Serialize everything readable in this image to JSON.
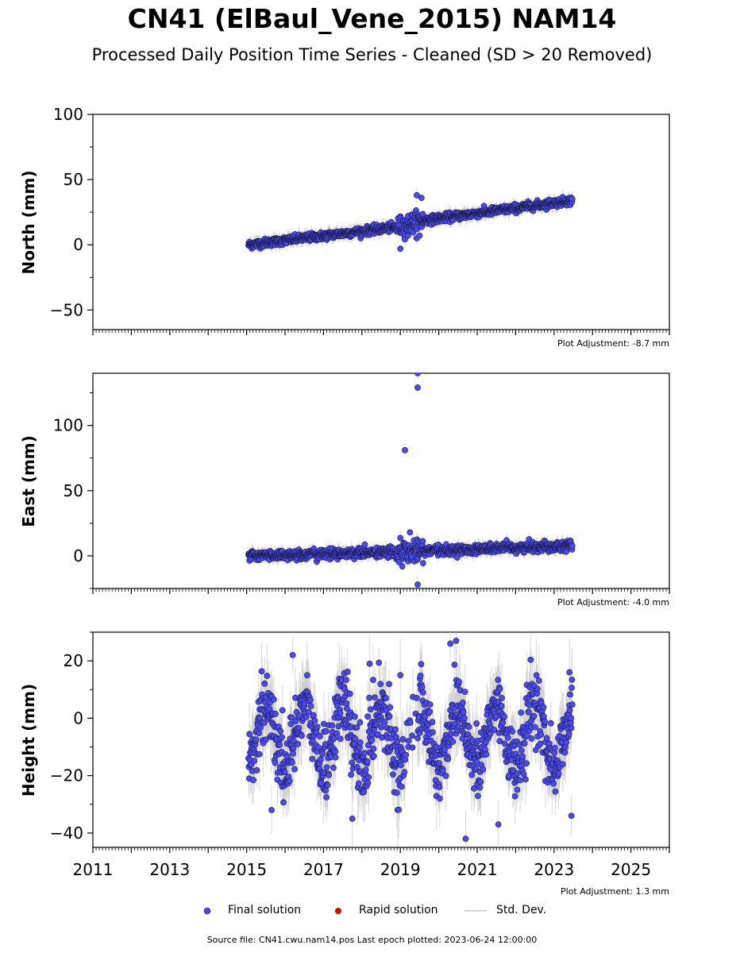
{
  "title": "CN41 (ElBaul_Vene_2015) NAM14",
  "subtitle": "Processed Daily Position Time Series - Cleaned (SD > 20 Removed)",
  "legend": {
    "final": "Final solution",
    "rapid": "Rapid solution",
    "stddev": "Std. Dev."
  },
  "colors": {
    "final": "#4a4af0",
    "rapid": "#e00000",
    "stddev": "#c8c8c8"
  },
  "source_text": "Source file: CN41.cwu.nam14.pos  Last epoch plotted: 2023-06-24 12:00:00",
  "chart_data": [
    {
      "type": "scatter",
      "ylabel": "North (mm)",
      "adjustment": "Plot Adjustment: -8.7 mm",
      "xlim": [
        2011,
        2026
      ],
      "ylim": [
        -65,
        100
      ],
      "yticks": [
        -50,
        0,
        50,
        100
      ],
      "ytick_labels": [
        "−50",
        "0",
        "50",
        "100"
      ],
      "yminor": 25,
      "x_range": [
        2015.05,
        2023.48
      ],
      "trend": [
        [
          2015.05,
          0
        ],
        [
          2019.0,
          14
        ],
        [
          2019.45,
          18
        ],
        [
          2023.48,
          34
        ]
      ],
      "noise": 1.5,
      "outliers": [
        [
          2019.0,
          -3
        ],
        [
          2019.43,
          38
        ],
        [
          2019.55,
          36
        ],
        [
          2019.2,
          7
        ],
        [
          2019.5,
          7
        ]
      ]
    },
    {
      "type": "scatter",
      "ylabel": "East (mm)",
      "adjustment": "Plot Adjustment: -4.0 mm",
      "xlim": [
        2011,
        2026
      ],
      "ylim": [
        -25,
        140
      ],
      "yticks": [
        0,
        50,
        100
      ],
      "ytick_labels": [
        "0",
        "50",
        "100"
      ],
      "yminor": 25,
      "x_range": [
        2015.05,
        2023.48
      ],
      "trend": [
        [
          2015.05,
          0
        ],
        [
          2019.0,
          3
        ],
        [
          2023.48,
          8
        ]
      ],
      "noise": 1.8,
      "outliers": [
        [
          2019.12,
          81
        ],
        [
          2019.45,
          140
        ],
        [
          2019.45,
          129
        ],
        [
          2019.25,
          18
        ],
        [
          2019.45,
          -22
        ],
        [
          2019.05,
          -8
        ]
      ]
    },
    {
      "type": "scatter",
      "ylabel": "Height (mm)",
      "adjustment": "Plot Adjustment: 1.3 mm",
      "xlim": [
        2011,
        2026
      ],
      "ylim": [
        -45,
        30
      ],
      "yticks": [
        -40,
        -20,
        0,
        20
      ],
      "ytick_labels": [
        "−40",
        "−20",
        "0",
        "20"
      ],
      "yminor": 10,
      "xticks": [
        2011,
        2013,
        2015,
        2017,
        2019,
        2021,
        2023,
        2025
      ],
      "x_range": [
        2015.05,
        2023.48
      ],
      "seasonal": {
        "mean": -6,
        "amplitude": 11,
        "peak_phase": 0.25
      },
      "noise": 6,
      "gap": [
        2019.1,
        2019.45
      ],
      "outliers": [
        [
          2015.65,
          -32
        ],
        [
          2016.2,
          22
        ],
        [
          2017.75,
          -35
        ],
        [
          2018.2,
          19
        ],
        [
          2019.0,
          15
        ],
        [
          2020.3,
          26
        ],
        [
          2020.45,
          27
        ],
        [
          2020.7,
          -42
        ],
        [
          2021.55,
          -37
        ],
        [
          2023.45,
          -34
        ],
        [
          2023.4,
          16
        ]
      ]
    }
  ]
}
